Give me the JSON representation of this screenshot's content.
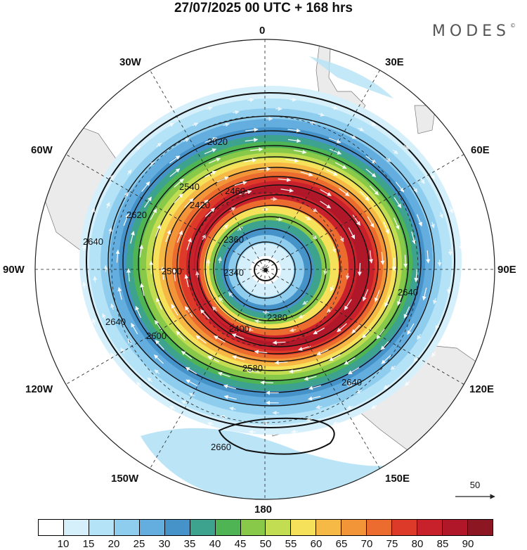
{
  "title": "27/07/2025  00 UTC  + 168 hrs",
  "brand": "MODES",
  "brand_mark": "©",
  "longitude_labels": {
    "lon_0": "0",
    "lon_30e": "30E",
    "lon_60e": "60E",
    "lon_90e": "90E",
    "lon_120e": "120E",
    "lon_150e": "150E",
    "lon_180": "180",
    "lon_150w": "150W",
    "lon_120w": "120W",
    "lon_90w": "90W",
    "lon_60w": "60W",
    "lon_30w": "30W"
  },
  "contour_labels": [
    "2620",
    "2540",
    "2460",
    "2420",
    "2380",
    "2360",
    "2340",
    "2400",
    "2500",
    "2580",
    "2600",
    "2640",
    "2660"
  ],
  "vector_reference": "50",
  "colorbar": {
    "colors": [
      "#ffffff",
      "#d6f0fb",
      "#b4e2f6",
      "#8fcdee",
      "#63aedf",
      "#4593c9",
      "#3da28e",
      "#4fb453",
      "#88c94a",
      "#c3dd52",
      "#f6e25a",
      "#f7b945",
      "#f29438",
      "#ec6b2e",
      "#de3a2a",
      "#c8212b",
      "#b0182a",
      "#8d1623"
    ],
    "ticks": [
      "10",
      "15",
      "20",
      "25",
      "30",
      "35",
      "40",
      "45",
      "50",
      "55",
      "60",
      "65",
      "70",
      "75",
      "80",
      "85",
      "90"
    ]
  }
}
